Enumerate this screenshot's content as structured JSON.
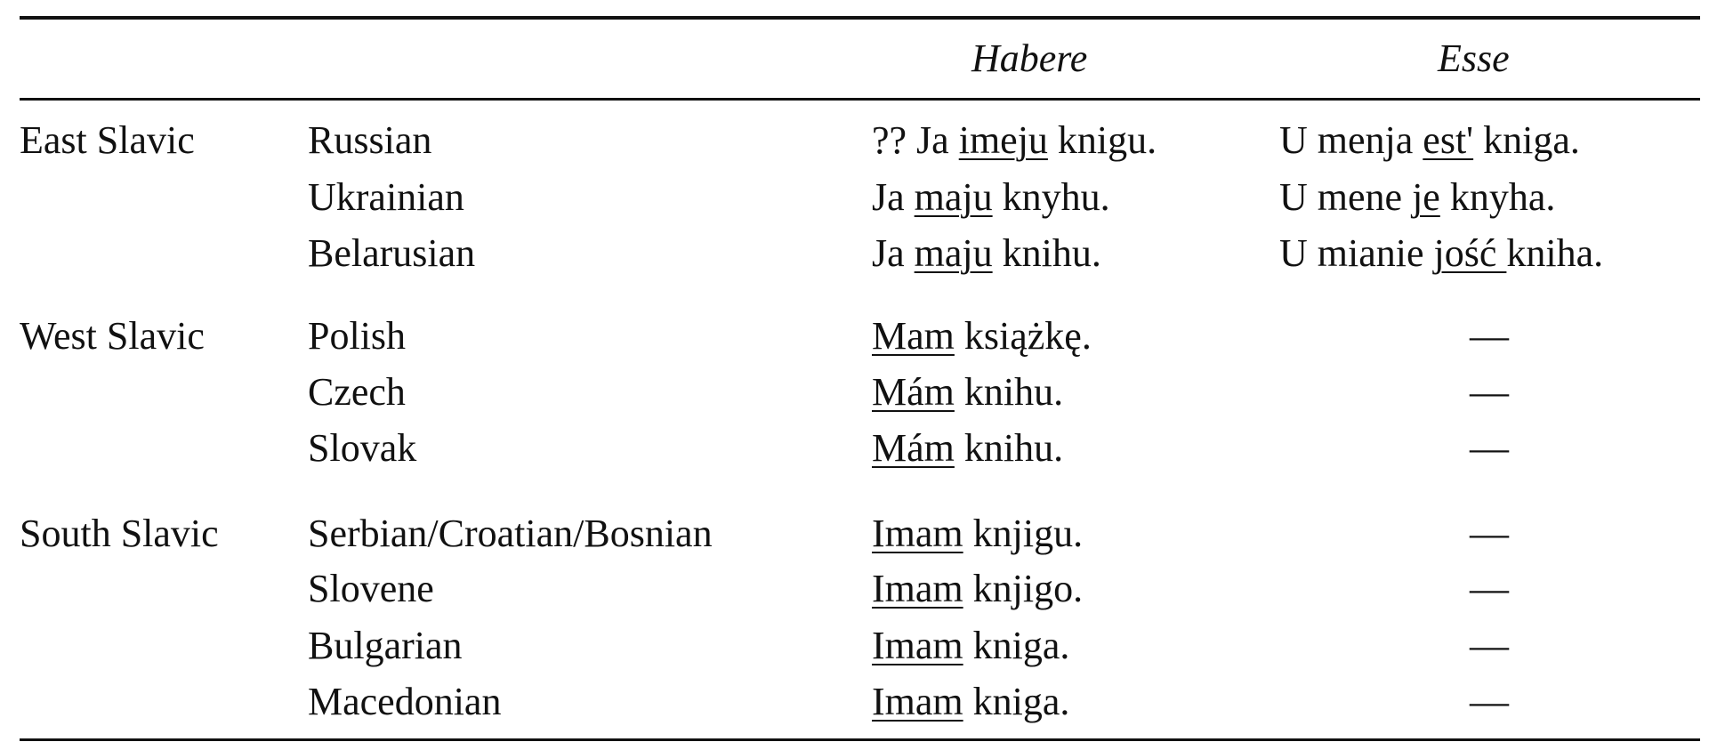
{
  "header": {
    "habere": "Habere",
    "esse": "Esse"
  },
  "groups": [
    {
      "name": "East Slavic",
      "rows": [
        {
          "language": "Russian",
          "habere": {
            "pre": "?? Ja ",
            "u": "imeju",
            "post": " knigu."
          },
          "esse": {
            "pre": "U menja ",
            "u": "est'",
            "post": " kniga."
          }
        },
        {
          "language": "Ukrainian",
          "habere": {
            "pre": "Ja ",
            "u": "maju",
            "post": " knyhu."
          },
          "esse": {
            "pre": "U mene ",
            "u": "je",
            "post": " knyha."
          }
        },
        {
          "language": "Belarusian",
          "habere": {
            "pre": "Ja ",
            "u": "maju",
            "post": " knihu."
          },
          "esse": {
            "pre": "U mianie ",
            "u": "jość ",
            "post": "kniha."
          }
        }
      ]
    },
    {
      "name": "West Slavic",
      "rows": [
        {
          "language": "Polish",
          "habere": {
            "pre": "",
            "u": "Mam",
            "post": " książkę."
          },
          "esse": "—"
        },
        {
          "language": "Czech",
          "habere": {
            "pre": "",
            "u": "Mám",
            "post": " knihu."
          },
          "esse": "—"
        },
        {
          "language": "Slovak",
          "habere": {
            "pre": "",
            "u": "Mám",
            "post": " knihu."
          },
          "esse": "—"
        }
      ]
    },
    {
      "name": "South Slavic",
      "rows": [
        {
          "language": "Serbian/Croatian/Bosnian",
          "habere": {
            "pre": "",
            "u": "Imam",
            "post": " knjigu."
          },
          "esse": "—"
        },
        {
          "language": "Slovene",
          "habere": {
            "pre": "",
            "u": "Imam",
            "post": " knjigo."
          },
          "esse": "—"
        },
        {
          "language": "Bulgarian",
          "habere": {
            "pre": "",
            "u": "Imam",
            "post": " kniga."
          },
          "esse": "—"
        },
        {
          "language": "Macedonian",
          "habere": {
            "pre": "",
            "u": "Imam",
            "post": " kniga."
          },
          "esse": "—"
        }
      ]
    }
  ]
}
